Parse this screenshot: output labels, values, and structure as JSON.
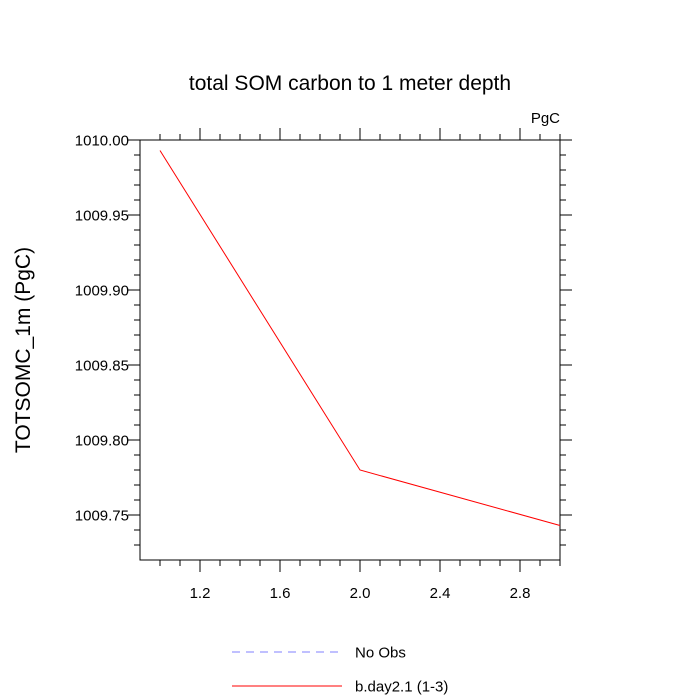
{
  "chart_data": {
    "type": "line",
    "title": "total SOM carbon to 1 meter depth",
    "units_label": "PgC",
    "ylabel": "TOTSOMC_1m  (PgC)",
    "xlabel": "",
    "xlim": [
      0.9,
      3.0
    ],
    "ylim": [
      1009.72,
      1010.0
    ],
    "x_ticks": [
      1.2,
      1.6,
      2.0,
      2.4,
      2.8
    ],
    "x_tick_labels": [
      "1.2",
      "1.6",
      "2.0",
      "2.4",
      "2.8"
    ],
    "y_ticks": [
      1009.75,
      1009.8,
      1009.85,
      1009.9,
      1009.95,
      1010.0
    ],
    "y_tick_labels": [
      "1009.75",
      "1009.80",
      "1009.85",
      "1009.90",
      "1009.95",
      "1010.00"
    ],
    "grid": false,
    "legend_position": "bottom",
    "series": [
      {
        "name": "No Obs",
        "color": "#8080ff",
        "dash": true,
        "x": [],
        "y": []
      },
      {
        "name": "b.day2.1 (1-3)",
        "color": "#ff0000",
        "dash": false,
        "x": [
          1.0,
          2.0,
          3.0
        ],
        "y": [
          1009.993,
          1009.78,
          1009.743
        ]
      }
    ]
  }
}
